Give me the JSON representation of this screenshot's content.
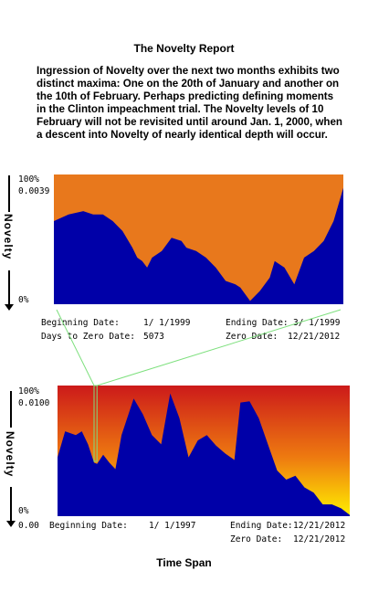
{
  "report": {
    "title": "The Novelty Report",
    "intro": "Ingression of Novelty over the next two months exhibits two distinct maxima:  One on the 20th of January and another on the 10th of February.  Perhaps predicting defining moments in the Clinton impeachment trial.  The Novelty levels of 10 February will not be revisited until around Jan. 1, 2000, when a descent into Novelty of nearly identical depth will occur."
  },
  "top_chart": {
    "side_label": "Novelty",
    "y_top": "100%",
    "y_mid": "0.0039",
    "y_bottom": "0%",
    "begin_label": "Beginning Date:",
    "begin_value": "1/ 1/1999",
    "end_label": "Ending Date:",
    "end_value": "3/ 1/1999",
    "days_label": "Days to Zero Date:",
    "days_value": "5073",
    "zero_label": "Zero Date:",
    "zero_value": "12/21/2012"
  },
  "bottom_chart": {
    "side_label": "Novelty",
    "y_top": "100%",
    "y_mid": "0.0100",
    "y_bottom": "0%",
    "x_start": "0.00",
    "begin_label": "Beginning Date:",
    "begin_value": "1/ 1/1997",
    "end_label": "Ending Date:",
    "end_value": "12/21/2012",
    "zero_label": "Zero Date:",
    "zero_value": "12/21/2012"
  },
  "x_axis_label": "Time Span",
  "colors": {
    "fill": "#0000a8",
    "top_bg": "#e8781c",
    "bottom_bg_top": "#cc1a1a",
    "bottom_bg_mid": "#ee7a10",
    "bottom_bg_bottom": "#ffef00",
    "zoom_line": "#7ee07e"
  },
  "chart_data": [
    {
      "type": "area",
      "ylim": [
        0,
        0.0039
      ],
      "xlim": [
        "1999-01-01",
        "1999-03-01"
      ],
      "x": [
        "1999-01-01",
        "1999-01-04",
        "1999-01-07",
        "1999-01-09",
        "1999-01-11",
        "1999-01-13",
        "1999-01-15",
        "1999-01-17",
        "1999-01-18",
        "1999-01-19",
        "1999-01-20",
        "1999-01-21",
        "1999-01-23",
        "1999-01-25",
        "1999-01-27",
        "1999-01-28",
        "1999-01-30",
        "1999-02-01",
        "1999-02-03",
        "1999-02-05",
        "1999-02-07",
        "1999-02-08",
        "1999-02-10",
        "1999-02-12",
        "1999-02-14",
        "1999-02-15",
        "1999-02-17",
        "1999-02-19",
        "1999-02-21",
        "1999-02-23",
        "1999-02-25",
        "1999-02-27",
        "1999-03-01"
      ],
      "values": [
        0.0025,
        0.0027,
        0.0028,
        0.0027,
        0.0027,
        0.0025,
        0.0022,
        0.0017,
        0.0014,
        0.0013,
        0.0011,
        0.0014,
        0.0016,
        0.002,
        0.0019,
        0.0017,
        0.0016,
        0.0014,
        0.0011,
        0.0007,
        0.0006,
        0.0005,
        0.0001,
        0.0004,
        0.0008,
        0.0013,
        0.0011,
        0.0006,
        0.0014,
        0.0016,
        0.0019,
        0.0025,
        0.0035
      ]
    },
    {
      "type": "area",
      "ylim": [
        0,
        0.01
      ],
      "xlim": [
        "1997-01-01",
        "2012-12-21"
      ],
      "x": [
        "1997-01-01",
        "1997-06-01",
        "1998-01-01",
        "1998-05-01",
        "1998-09-01",
        "1999-01-01",
        "1999-03-01",
        "1999-07-01",
        "1999-11-01",
        "2000-03-01",
        "2000-07-01",
        "2001-03-01",
        "2001-09-01",
        "2002-03-01",
        "2002-09-01",
        "2003-03-01",
        "2003-09-01",
        "2004-03-01",
        "2004-09-01",
        "2005-03-01",
        "2005-09-01",
        "2006-03-01",
        "2006-09-01",
        "2007-01-01",
        "2007-07-01",
        "2008-01-01",
        "2008-07-01",
        "2009-01-01",
        "2009-07-01",
        "2010-01-01",
        "2010-07-01",
        "2011-01-01",
        "2011-07-01",
        "2012-01-01",
        "2012-07-01",
        "2012-12-21"
      ],
      "values": [
        0.0045,
        0.0065,
        0.0062,
        0.0065,
        0.0055,
        0.0041,
        0.004,
        0.0047,
        0.0041,
        0.0036,
        0.0062,
        0.009,
        0.0078,
        0.0062,
        0.0055,
        0.0094,
        0.0075,
        0.0045,
        0.0058,
        0.0062,
        0.0054,
        0.0048,
        0.0043,
        0.0087,
        0.0088,
        0.0075,
        0.0055,
        0.0035,
        0.0028,
        0.0031,
        0.0022,
        0.0018,
        0.0009,
        0.0009,
        0.0006,
        0.0001
      ]
    }
  ]
}
